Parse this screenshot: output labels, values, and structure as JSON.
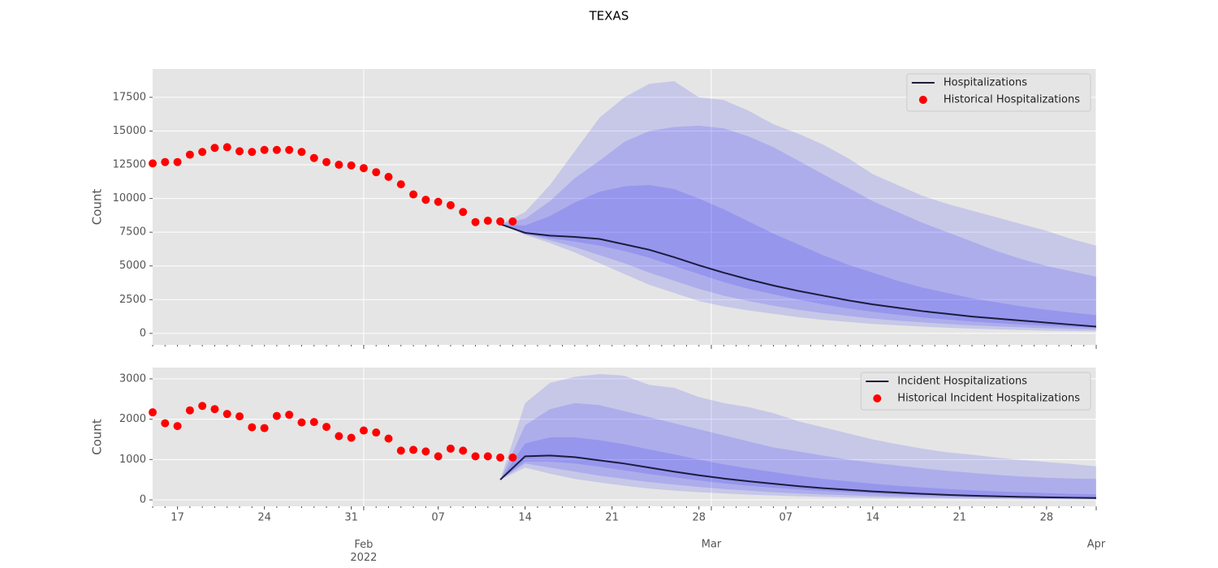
{
  "chart_data": [
    {
      "type": "line",
      "title": "TEXAS",
      "ylabel": "Count",
      "legend": "upper right",
      "grid": true,
      "background": "#e5e5e5",
      "xlim": [
        "2022-01-15",
        "2022-04-01"
      ],
      "xticks": [
        "2022-02-01",
        "2022-03-01",
        "2022-04-01"
      ],
      "ylim": [
        -850,
        19600
      ],
      "yticks": [
        0,
        2500,
        5000,
        7500,
        10000,
        12500,
        15000,
        17500
      ],
      "band_color": "#0000ff",
      "series": [
        {
          "name": "Hospitalizations",
          "color": "#1c1c3c",
          "x": [
            "2022-02-12",
            "2022-02-14",
            "2022-02-16",
            "2022-02-18",
            "2022-02-20",
            "2022-02-22",
            "2022-02-24",
            "2022-02-26",
            "2022-02-28",
            "2022-03-02",
            "2022-03-04",
            "2022-03-06",
            "2022-03-08",
            "2022-03-10",
            "2022-03-12",
            "2022-03-14",
            "2022-03-16",
            "2022-03-18",
            "2022-03-20",
            "2022-03-22",
            "2022-03-24",
            "2022-03-26",
            "2022-03-28",
            "2022-03-30",
            "2022-04-01"
          ],
          "values": [
            8100,
            7450,
            7250,
            7150,
            7000,
            6600,
            6200,
            5650,
            5050,
            4500,
            4000,
            3550,
            3150,
            2800,
            2450,
            2150,
            1900,
            1650,
            1450,
            1250,
            1100,
            950,
            800,
            650,
            500
          ]
        },
        {
          "name": "Historical Hospitalizations",
          "color": "#ff0000",
          "type": "scatter",
          "x": [
            "2022-01-15",
            "2022-01-16",
            "2022-01-17",
            "2022-01-18",
            "2022-01-19",
            "2022-01-20",
            "2022-01-21",
            "2022-01-22",
            "2022-01-23",
            "2022-01-24",
            "2022-01-25",
            "2022-01-26",
            "2022-01-27",
            "2022-01-28",
            "2022-01-29",
            "2022-01-30",
            "2022-01-31",
            "2022-02-01",
            "2022-02-02",
            "2022-02-03",
            "2022-02-04",
            "2022-02-05",
            "2022-02-06",
            "2022-02-07",
            "2022-02-08",
            "2022-02-09",
            "2022-02-10",
            "2022-02-11",
            "2022-02-12",
            "2022-02-13"
          ],
          "values": [
            12600,
            12700,
            12700,
            13250,
            13450,
            13750,
            13800,
            13500,
            13450,
            13600,
            13600,
            13600,
            13450,
            13000,
            12700,
            12500,
            12450,
            12250,
            11950,
            11600,
            11050,
            10300,
            9900,
            9750,
            9500,
            9000,
            8250,
            8350,
            8300,
            8300
          ]
        }
      ],
      "bands": [
        {
          "lower": [
            8100,
            7300,
            6700,
            6000,
            5200,
            4400,
            3600,
            3000,
            2400,
            2000,
            1700,
            1450,
            1200,
            1000,
            850,
            700,
            600,
            500,
            420,
            350,
            300,
            250,
            200,
            170,
            150
          ],
          "upper": [
            8100,
            9000,
            11000,
            13500,
            16000,
            17500,
            18500,
            18700,
            17500,
            17300,
            16500,
            15500,
            14800,
            14000,
            13000,
            11800,
            11000,
            10200,
            9600,
            9100,
            8600,
            8100,
            7600,
            7000,
            6500
          ]
        },
        {
          "lower": [
            8100,
            7350,
            6900,
            6400,
            5800,
            5200,
            4500,
            3900,
            3300,
            2800,
            2400,
            2050,
            1750,
            1500,
            1300,
            1100,
            950,
            820,
            700,
            600,
            520,
            450,
            380,
            330,
            280
          ],
          "upper": [
            8100,
            8500,
            9800,
            11500,
            12800,
            14200,
            15000,
            15300,
            15400,
            15200,
            14600,
            13800,
            12800,
            11800,
            10800,
            9800,
            9000,
            8200,
            7500,
            6800,
            6100,
            5500,
            5000,
            4600,
            4200
          ]
        },
        {
          "lower": [
            8100,
            7400,
            7050,
            6800,
            6500,
            6100,
            5600,
            5000,
            4400,
            3800,
            3300,
            2900,
            2500,
            2150,
            1850,
            1600,
            1380,
            1180,
            1020,
            880,
            760,
            650,
            560,
            480,
            410
          ],
          "upper": [
            8100,
            8000,
            8700,
            9700,
            10500,
            10900,
            11000,
            10700,
            10000,
            9200,
            8300,
            7400,
            6600,
            5800,
            5100,
            4500,
            3900,
            3400,
            3000,
            2600,
            2300,
            2000,
            1750,
            1550,
            1350
          ]
        }
      ]
    },
    {
      "type": "line",
      "ylabel": "Count",
      "legend": "upper right",
      "grid": true,
      "background": "#e5e5e5",
      "xlim": [
        "2022-01-15",
        "2022-04-01"
      ],
      "xticks": [
        {
          "value": "2022-02-01",
          "label": "Feb\n2022"
        },
        {
          "value": "2022-03-01",
          "label": "Mar"
        },
        {
          "value": "2022-04-01",
          "label": "Apr"
        }
      ],
      "xticks_minor": [
        {
          "value": "2022-01-17",
          "label": "17"
        },
        {
          "value": "2022-01-24",
          "label": "24"
        },
        {
          "value": "2022-01-31",
          "label": "31"
        },
        {
          "value": "2022-02-07",
          "label": "07"
        },
        {
          "value": "2022-02-14",
          "label": "14"
        },
        {
          "value": "2022-02-21",
          "label": "21"
        },
        {
          "value": "2022-02-28",
          "label": "28"
        },
        {
          "value": "2022-03-07",
          "label": "07"
        },
        {
          "value": "2022-03-14",
          "label": "14"
        },
        {
          "value": "2022-03-21",
          "label": "21"
        },
        {
          "value": "2022-03-28",
          "label": "28"
        }
      ],
      "ylim": [
        -160,
        3280
      ],
      "yticks": [
        0,
        1000,
        2000,
        3000
      ],
      "band_color": "#0000ff",
      "series": [
        {
          "name": "Incident Hospitalizations",
          "color": "#1c1c3c",
          "x": [
            "2022-02-12",
            "2022-02-14",
            "2022-02-16",
            "2022-02-18",
            "2022-02-20",
            "2022-02-22",
            "2022-02-24",
            "2022-02-26",
            "2022-02-28",
            "2022-03-02",
            "2022-03-04",
            "2022-03-06",
            "2022-03-08",
            "2022-03-10",
            "2022-03-12",
            "2022-03-14",
            "2022-03-16",
            "2022-03-18",
            "2022-03-20",
            "2022-03-22",
            "2022-03-24",
            "2022-03-26",
            "2022-03-28",
            "2022-03-30",
            "2022-04-01"
          ],
          "values": [
            500,
            1080,
            1100,
            1060,
            980,
            900,
            800,
            700,
            610,
            530,
            460,
            400,
            340,
            290,
            250,
            210,
            180,
            150,
            125,
            105,
            90,
            75,
            65,
            55,
            45
          ]
        },
        {
          "name": "Historical Incident Hospitalizations",
          "color": "#ff0000",
          "type": "scatter",
          "x": [
            "2022-01-15",
            "2022-01-16",
            "2022-01-17",
            "2022-01-18",
            "2022-01-19",
            "2022-01-20",
            "2022-01-21",
            "2022-01-22",
            "2022-01-23",
            "2022-01-24",
            "2022-01-25",
            "2022-01-26",
            "2022-01-27",
            "2022-01-28",
            "2022-01-29",
            "2022-01-30",
            "2022-01-31",
            "2022-02-01",
            "2022-02-02",
            "2022-02-03",
            "2022-02-04",
            "2022-02-05",
            "2022-02-06",
            "2022-02-07",
            "2022-02-08",
            "2022-02-09",
            "2022-02-10",
            "2022-02-11",
            "2022-02-12",
            "2022-02-13"
          ],
          "values": [
            2170,
            1900,
            1830,
            2220,
            2330,
            2250,
            2130,
            2070,
            1800,
            1780,
            2080,
            2110,
            1920,
            1930,
            1810,
            1580,
            1540,
            1720,
            1670,
            1520,
            1220,
            1240,
            1200,
            1080,
            1270,
            1220,
            1080,
            1080,
            1050,
            1050
          ]
        }
      ],
      "bands": [
        {
          "lower": [
            500,
            800,
            650,
            520,
            430,
            350,
            280,
            230,
            190,
            160,
            130,
            110,
            90,
            75,
            60,
            50,
            42,
            35,
            30,
            25,
            20,
            17,
            15,
            12,
            10
          ],
          "upper": [
            500,
            2400,
            2900,
            3050,
            3120,
            3080,
            2850,
            2780,
            2550,
            2400,
            2300,
            2150,
            1950,
            1800,
            1650,
            1500,
            1380,
            1270,
            1180,
            1120,
            1050,
            990,
            940,
            890,
            830
          ]
        },
        {
          "lower": [
            500,
            900,
            800,
            700,
            600,
            520,
            440,
            380,
            320,
            270,
            230,
            190,
            160,
            135,
            115,
            95,
            80,
            68,
            58,
            48,
            40,
            34,
            28,
            23,
            19
          ],
          "upper": [
            500,
            1850,
            2250,
            2400,
            2350,
            2200,
            2050,
            1900,
            1750,
            1600,
            1450,
            1300,
            1200,
            1100,
            1000,
            920,
            850,
            780,
            720,
            670,
            620,
            580,
            550,
            530,
            520
          ]
        },
        {
          "lower": [
            500,
            950,
            950,
            900,
            820,
            730,
            640,
            560,
            480,
            410,
            350,
            300,
            260,
            220,
            190,
            160,
            135,
            115,
            98,
            82,
            70,
            60,
            50,
            42,
            36
          ],
          "upper": [
            500,
            1400,
            1550,
            1550,
            1480,
            1380,
            1250,
            1130,
            1000,
            880,
            780,
            690,
            600,
            520,
            460,
            400,
            350,
            310,
            270,
            240,
            210,
            190,
            170,
            150,
            135
          ]
        }
      ]
    }
  ]
}
